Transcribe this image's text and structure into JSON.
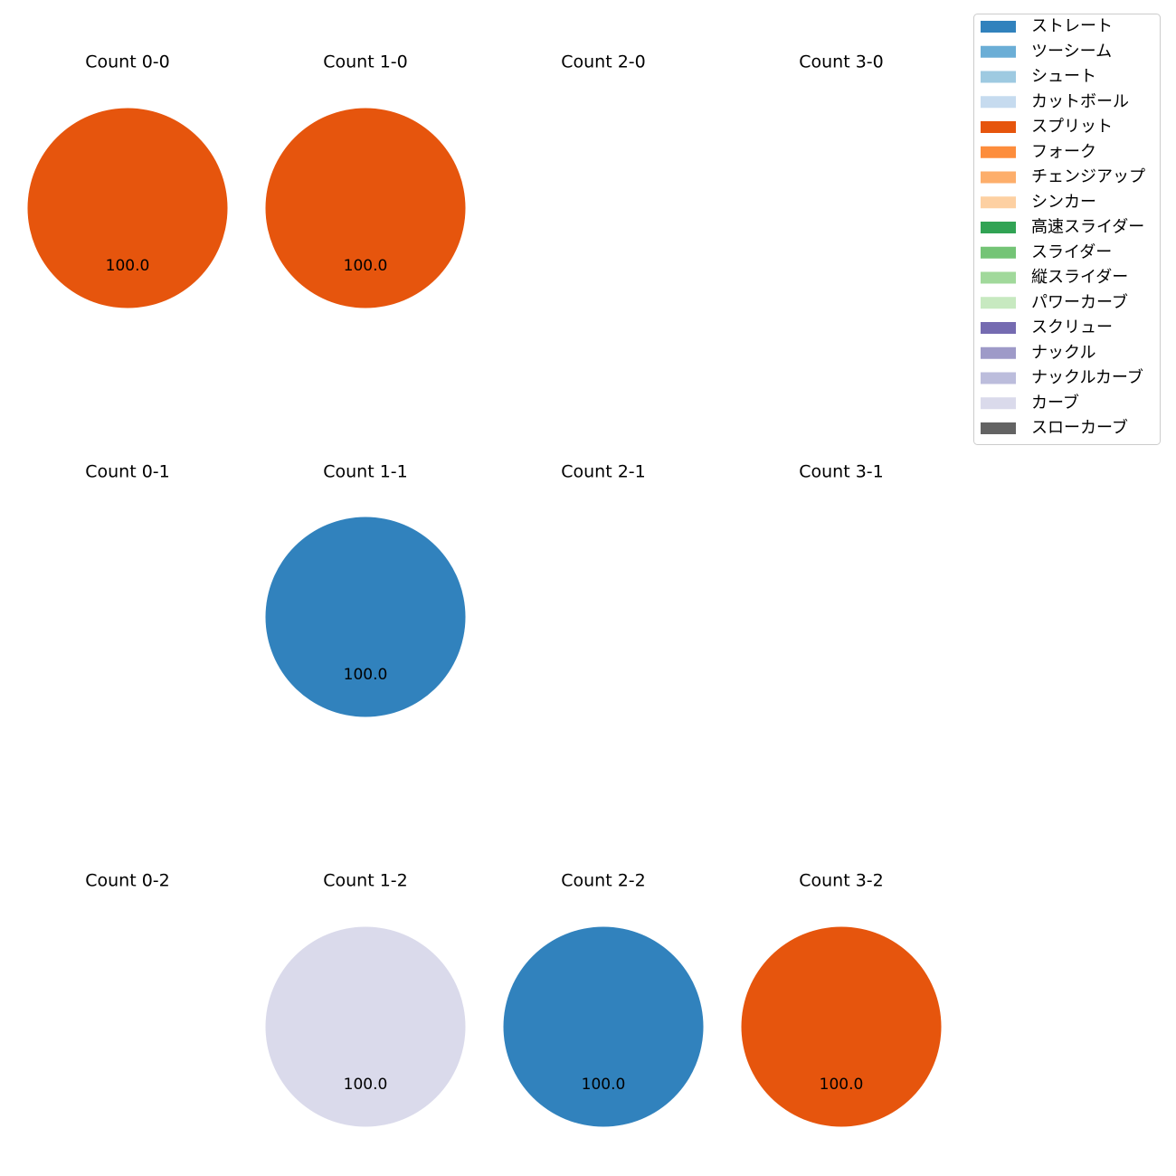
{
  "chart_data": {
    "type": "pie",
    "legend_position": "top-right",
    "legend": [
      {
        "label": "ストレート",
        "color": "#3182bd"
      },
      {
        "label": "ツーシーム",
        "color": "#6baed6"
      },
      {
        "label": "シュート",
        "color": "#9ecae1"
      },
      {
        "label": "カットボール",
        "color": "#c6dbef"
      },
      {
        "label": "スプリット",
        "color": "#e6550d"
      },
      {
        "label": "フォーク",
        "color": "#fd8d3c"
      },
      {
        "label": "チェンジアップ",
        "color": "#fdae6b"
      },
      {
        "label": "シンカー",
        "color": "#fdd0a2"
      },
      {
        "label": "高速スライダー",
        "color": "#31a354"
      },
      {
        "label": "スライダー",
        "color": "#74c476"
      },
      {
        "label": "縦スライダー",
        "color": "#a1d99b"
      },
      {
        "label": "パワーカーブ",
        "color": "#c7e9c0"
      },
      {
        "label": "スクリュー",
        "color": "#756bb1"
      },
      {
        "label": "ナックル",
        "color": "#9e9ac8"
      },
      {
        "label": "ナックルカーブ",
        "color": "#bcbddc"
      },
      {
        "label": "カーブ",
        "color": "#dadaeb"
      },
      {
        "label": "スローカーブ",
        "color": "#636363"
      }
    ],
    "panels": [
      {
        "title": "Count 0-0",
        "slices": [
          {
            "pitch": "スプリット",
            "value": 100.0,
            "label": "100.0"
          }
        ]
      },
      {
        "title": "Count 1-0",
        "slices": [
          {
            "pitch": "スプリット",
            "value": 100.0,
            "label": "100.0"
          }
        ]
      },
      {
        "title": "Count 2-0",
        "slices": []
      },
      {
        "title": "Count 3-0",
        "slices": []
      },
      {
        "title": "Count 0-1",
        "slices": []
      },
      {
        "title": "Count 1-1",
        "slices": [
          {
            "pitch": "ストレート",
            "value": 100.0,
            "label": "100.0"
          }
        ]
      },
      {
        "title": "Count 2-1",
        "slices": []
      },
      {
        "title": "Count 3-1",
        "slices": []
      },
      {
        "title": "Count 0-2",
        "slices": []
      },
      {
        "title": "Count 1-2",
        "slices": [
          {
            "pitch": "カーブ",
            "value": 100.0,
            "label": "100.0"
          }
        ]
      },
      {
        "title": "Count 2-2",
        "slices": [
          {
            "pitch": "ストレート",
            "value": 100.0,
            "label": "100.0"
          }
        ]
      },
      {
        "title": "Count 3-2",
        "slices": [
          {
            "pitch": "スプリット",
            "value": 100.0,
            "label": "100.0"
          }
        ]
      }
    ]
  }
}
